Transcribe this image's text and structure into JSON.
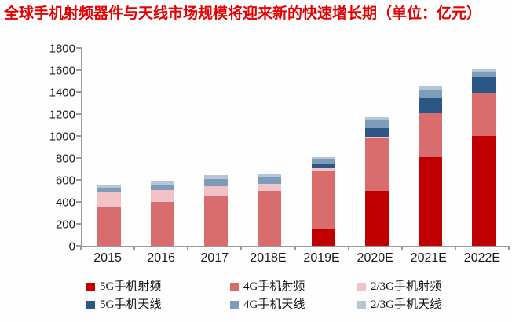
{
  "title": "全球手机射频器件与天线市场规模将迎来新的快速增长期（单位：亿元）",
  "colors": {
    "title": "#e60000",
    "axis": "#9a9a9a"
  },
  "chart_data": {
    "type": "bar",
    "stacked": true,
    "title": "全球手机射频器件与天线市场规模将迎来新的快速增长期",
    "unit_label": "单位：亿元",
    "categories": [
      "2015",
      "2016",
      "2017",
      "2018E",
      "2019E",
      "2020E",
      "2021E",
      "2022E"
    ],
    "series": [
      {
        "name": "5G手机射频",
        "color": "#c00000",
        "values": [
          0,
          0,
          0,
          0,
          150,
          500,
          810,
          1000
        ]
      },
      {
        "name": "4G手机射频",
        "color": "#d96d6d",
        "values": [
          350,
          400,
          455,
          500,
          530,
          480,
          400,
          390
        ]
      },
      {
        "name": "2/3G手机射频",
        "color": "#f1c3c8",
        "values": [
          135,
          110,
          85,
          65,
          30,
          10,
          0,
          0
        ]
      },
      {
        "name": "5G手机天线",
        "color": "#2a5783",
        "values": [
          0,
          0,
          0,
          0,
          30,
          85,
          130,
          145
        ]
      },
      {
        "name": "4G手机天线",
        "color": "#7e9cba",
        "values": [
          45,
          50,
          70,
          65,
          50,
          65,
          75,
          45
        ]
      },
      {
        "name": "2/3G手机天线",
        "color": "#b3c7d6",
        "values": [
          25,
          25,
          30,
          25,
          15,
          30,
          35,
          25
        ]
      }
    ],
    "totals": [
      555,
      585,
      640,
      655,
      805,
      1170,
      1450,
      1605
    ],
    "ylim": [
      0,
      1800
    ],
    "yticks": [
      0,
      200,
      400,
      600,
      800,
      1000,
      1200,
      1400,
      1600,
      1800
    ],
    "xlabel": "",
    "ylabel": "",
    "grid": false,
    "legend_position": "bottom",
    "legend_rows": [
      [
        "5G手机射频",
        "4G手机射频",
        "2/3G手机射频"
      ],
      [
        "5G手机天线",
        "4G手机天线",
        "2/3G手机天线"
      ]
    ]
  }
}
